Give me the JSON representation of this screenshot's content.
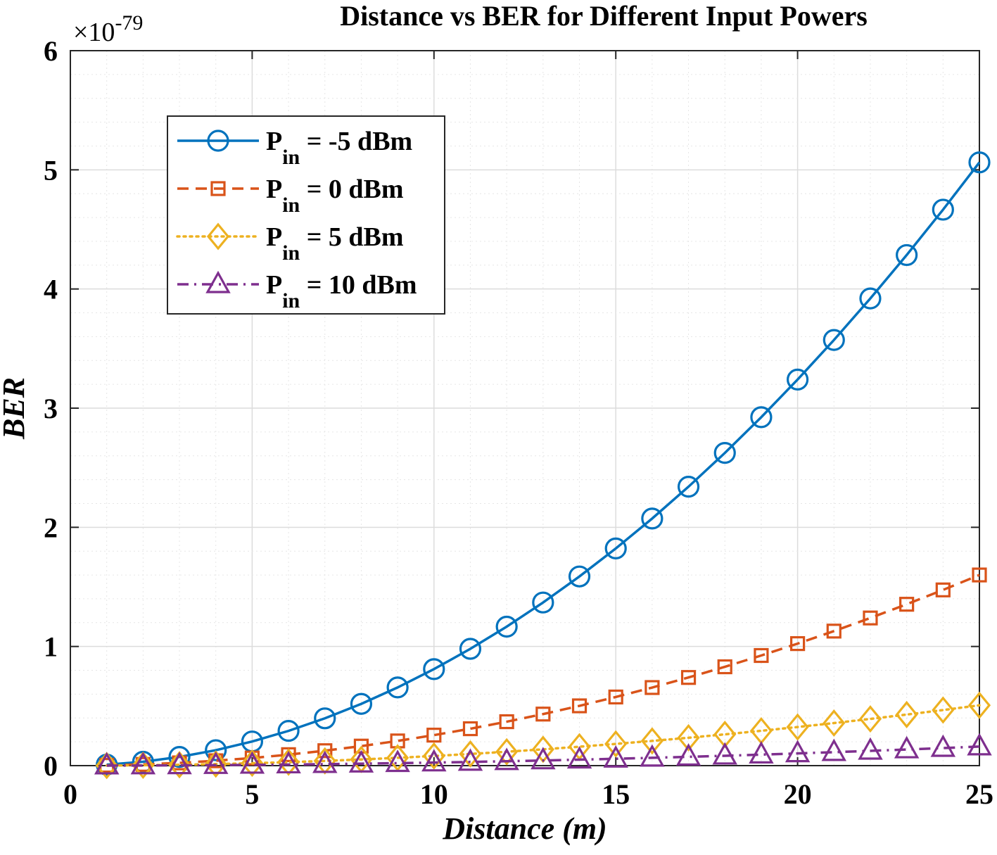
{
  "chart_data": {
    "type": "line",
    "title": "Distance vs BER for Different Input Powers",
    "xlabel": "Distance (m)",
    "ylabel": "BER",
    "xlim": [
      0,
      25
    ],
    "ylim": [
      0,
      6
    ],
    "y_exponent_base": "×10",
    "y_exponent_power": "-79",
    "xticks": [
      "0",
      "5",
      "10",
      "15",
      "20",
      "25"
    ],
    "yticks": [
      "0",
      "1",
      "2",
      "3",
      "4",
      "5",
      "6"
    ],
    "grid": true,
    "minor_grid": true,
    "legend_position": "top-left",
    "x": [
      1,
      2,
      3,
      4,
      5,
      6,
      7,
      8,
      9,
      10,
      11,
      12,
      13,
      14,
      15,
      16,
      17,
      18,
      19,
      20,
      21,
      22,
      23,
      24,
      25
    ],
    "series": [
      {
        "legend_prefix": "P",
        "legend_sub": "in",
        "legend_suffix": " = -5 dBm",
        "color": "#0072BD",
        "line_style": "solid",
        "marker": "circle",
        "values": [
          0.0081,
          0.0324,
          0.0729,
          0.1296,
          0.2025,
          0.2916,
          0.3969,
          0.5184,
          0.6561,
          0.81,
          0.9801,
          1.1664,
          1.3689,
          1.5876,
          1.8225,
          2.0736,
          2.3409,
          2.6244,
          2.9241,
          3.24,
          3.5721,
          3.9204,
          4.2849,
          4.6656,
          5.0625
        ]
      },
      {
        "legend_prefix": "P",
        "legend_sub": "in",
        "legend_suffix": " = 0 dBm",
        "color": "#D95319",
        "line_style": "dashed",
        "marker": "square",
        "values": [
          0.00256,
          0.01024,
          0.02304,
          0.04096,
          0.064,
          0.09216,
          0.12544,
          0.16384,
          0.20736,
          0.256,
          0.30976,
          0.36864,
          0.43264,
          0.50176,
          0.576,
          0.65536,
          0.73984,
          0.82944,
          0.92416,
          1.024,
          1.12896,
          1.23904,
          1.35424,
          1.47456,
          1.6
        ]
      },
      {
        "legend_prefix": "P",
        "legend_sub": "in",
        "legend_suffix": " = 5 dBm",
        "color": "#EDB120",
        "line_style": "dotted",
        "marker": "diamond",
        "values": [
          0.00081,
          0.00324,
          0.00729,
          0.01296,
          0.02025,
          0.02916,
          0.03969,
          0.05184,
          0.06561,
          0.081,
          0.09801,
          0.11664,
          0.13689,
          0.15876,
          0.18225,
          0.20736,
          0.23409,
          0.26244,
          0.29241,
          0.324,
          0.35721,
          0.39204,
          0.42849,
          0.46656,
          0.50625
        ]
      },
      {
        "legend_prefix": "P",
        "legend_sub": "in",
        "legend_suffix": " = 10 dBm",
        "color": "#7E2F8E",
        "line_style": "dashdot",
        "marker": "triangle",
        "values": [
          0.000256,
          0.001024,
          0.002304,
          0.004096,
          0.0064,
          0.009216,
          0.012544,
          0.016384,
          0.020736,
          0.0256,
          0.030976,
          0.036864,
          0.043264,
          0.050176,
          0.0576,
          0.065536,
          0.073984,
          0.082944,
          0.092416,
          0.1024,
          0.112896,
          0.123904,
          0.135424,
          0.147456,
          0.16
        ]
      }
    ]
  }
}
